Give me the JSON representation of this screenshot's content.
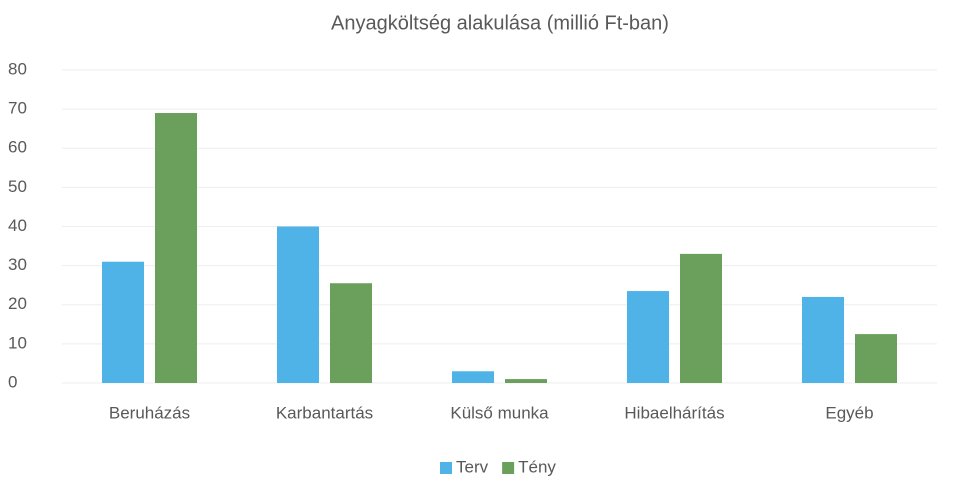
{
  "chart_data": {
    "type": "bar",
    "title": "Anyagköltség alakulása (millió Ft-ban)",
    "categories": [
      "Beruházás",
      "Karbantartás",
      "Külső munka",
      "Hibaelhárítás",
      "Egyéb"
    ],
    "series": [
      {
        "name": "Terv",
        "color": "#4fb3e8",
        "values": [
          31,
          40,
          3,
          23.5,
          22
        ]
      },
      {
        "name": "Tény",
        "color": "#6a9f5c",
        "values": [
          69,
          25.5,
          1,
          33,
          12.5
        ]
      }
    ],
    "ylim": [
      0,
      80
    ],
    "yticks": [
      0,
      10,
      20,
      30,
      40,
      50,
      60,
      70,
      80
    ],
    "grid": true,
    "legend": "bottom"
  }
}
